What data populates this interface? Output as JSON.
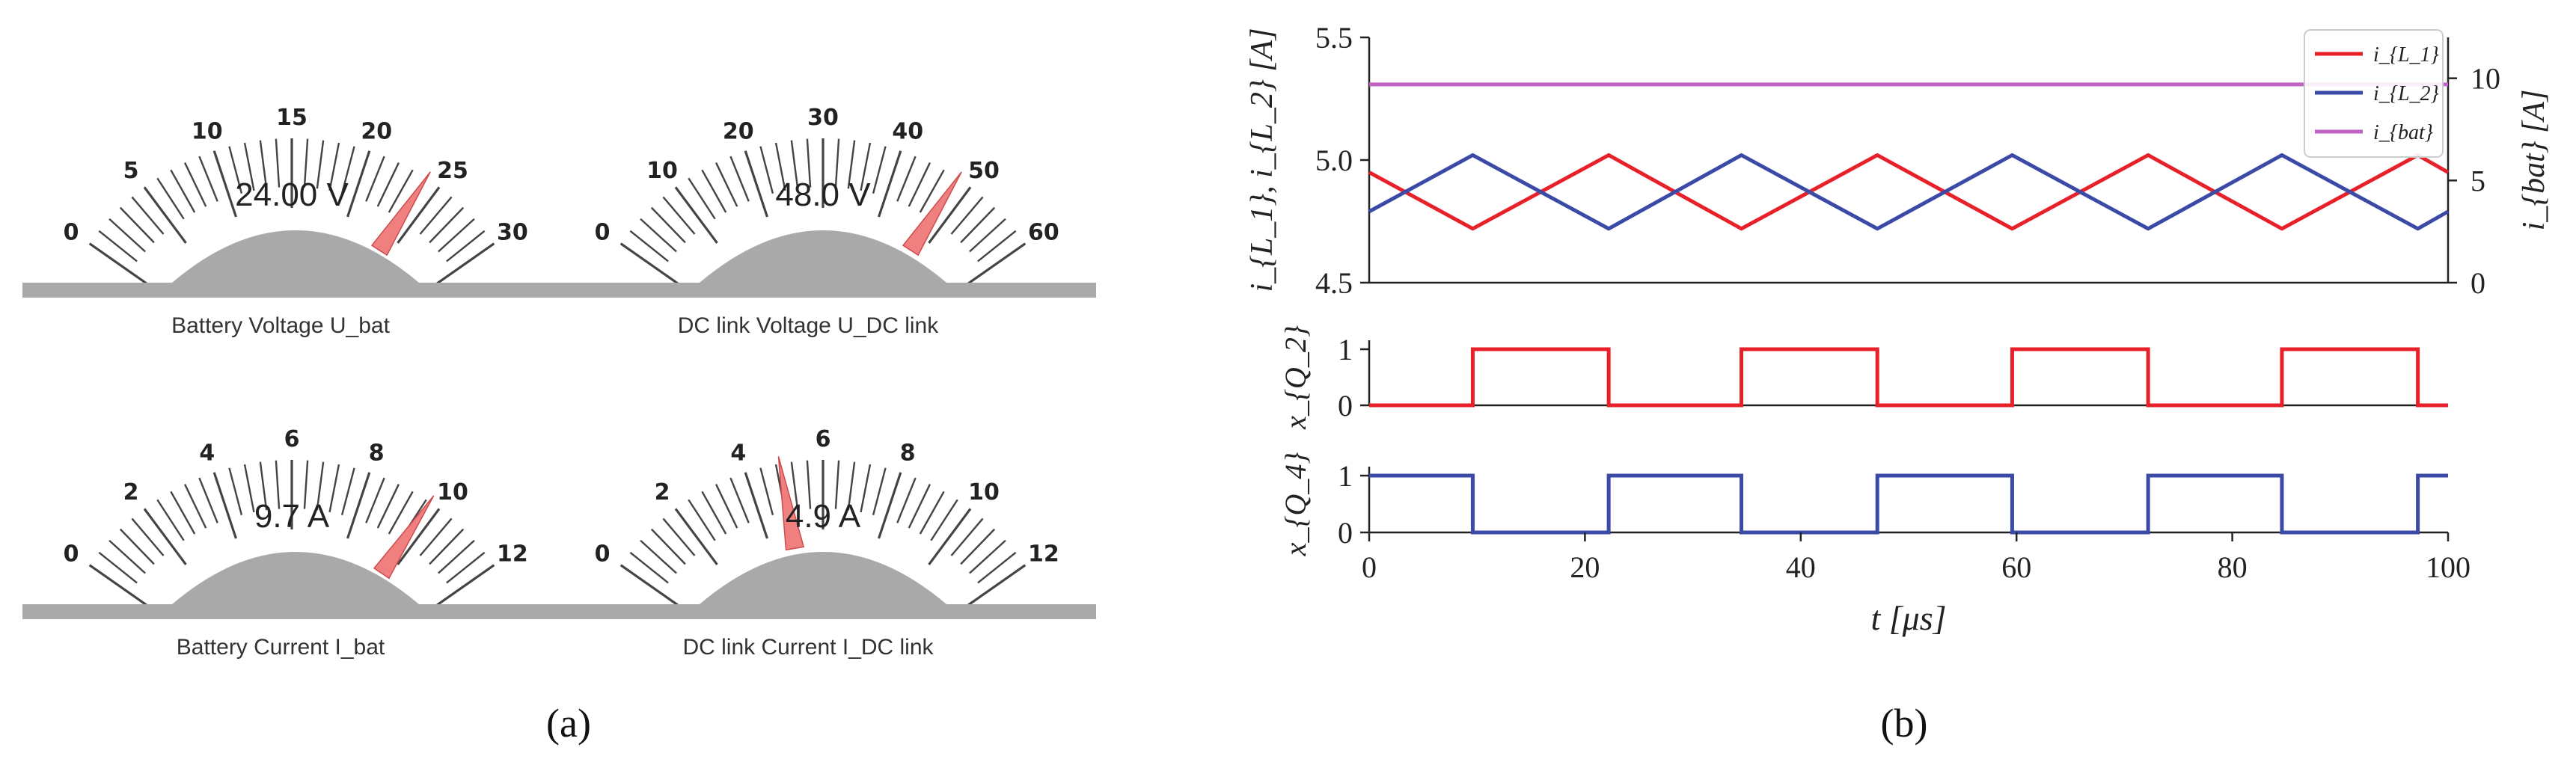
{
  "panel_a": {
    "label": "(a)",
    "gauges": [
      {
        "name": "battery-voltage",
        "ticks": [
          0,
          5,
          10,
          15,
          20,
          25,
          30
        ],
        "tick_labels": [
          "0",
          "5",
          "10",
          "15",
          "20",
          "25",
          "30"
        ],
        "min": 0,
        "max": 30,
        "value": 24.0,
        "readout": "24.00 V",
        "caption": "Battery Voltage U_bat"
      },
      {
        "name": "dc-link-voltage",
        "ticks": [
          0,
          10,
          20,
          30,
          40,
          50,
          60
        ],
        "tick_labels": [
          "0",
          "10",
          "20",
          "30",
          "40",
          "50",
          "60"
        ],
        "min": 0,
        "max": 60,
        "value": 48.0,
        "readout": "48.0 V",
        "caption": "DC link Voltage U_DC link"
      },
      {
        "name": "battery-current",
        "ticks": [
          0,
          2,
          4,
          6,
          8,
          10,
          12
        ],
        "tick_labels": [
          "0",
          "2",
          "4",
          "6",
          "8",
          "10",
          "12"
        ],
        "min": 0,
        "max": 12,
        "value": 9.7,
        "readout": "9.7 A",
        "caption": "Battery Current I_bat"
      },
      {
        "name": "dc-link-current",
        "ticks": [
          0,
          2,
          4,
          6,
          8,
          10,
          12
        ],
        "tick_labels": [
          "0",
          "2",
          "4",
          "6",
          "8",
          "10",
          "12"
        ],
        "min": 0,
        "max": 12,
        "value": 4.9,
        "readout": "4.9 A",
        "caption": "DC link Current I_DC link"
      }
    ],
    "colors": {
      "needle": "#f08080",
      "needle_edge": "#cc4b4b",
      "dome": "#a9a9a9",
      "base": "#a9a9a9",
      "tick": "#444444"
    }
  },
  "panel_b": {
    "label": "(b)",
    "chart_data": [
      {
        "type": "line",
        "xlim": [
          0,
          100
        ],
        "ylim": [
          4.5,
          5.5
        ],
        "y2lim": [
          0,
          12
        ],
        "yticks": [
          "4.5",
          "5.0",
          "5.5"
        ],
        "y2ticks": [
          "0",
          "5",
          "10"
        ],
        "ylabel": "i_{L_1}, i_{L_2} [A]",
        "y2label": "i_{bat} [A]",
        "legend": [
          "i_{L_1}",
          "i_{L_2}",
          "i_{bat}"
        ],
        "legend_position": "top-right",
        "series": [
          {
            "name": "i_{L_1}",
            "color": "#e8202a",
            "axis": "left",
            "x": [
              0,
              9.6,
              22.2,
              34.5,
              47.1,
              59.6,
              72.2,
              84.6,
              97.2,
              100
            ],
            "y": [
              4.95,
              4.72,
              5.02,
              4.72,
              5.02,
              4.72,
              5.02,
              4.72,
              5.02,
              4.95
            ]
          },
          {
            "name": "i_{L_2}",
            "color": "#3a4aa6",
            "axis": "left",
            "x": [
              0,
              9.6,
              22.2,
              34.5,
              47.1,
              59.6,
              72.2,
              84.6,
              97.2,
              100
            ],
            "y": [
              4.79,
              5.02,
              4.72,
              5.02,
              4.72,
              5.02,
              4.72,
              5.02,
              4.72,
              4.79
            ]
          },
          {
            "name": "i_{bat}",
            "color": "#c162c5",
            "axis": "right",
            "x": [
              0,
              100
            ],
            "y": [
              9.7,
              9.7
            ]
          }
        ]
      },
      {
        "type": "line",
        "xlim": [
          0,
          100
        ],
        "ylim": [
          0,
          1
        ],
        "yticks": [
          "0",
          "1"
        ],
        "ylabel": "x_{Q_2}",
        "series": [
          {
            "name": "x_{Q_2}",
            "color": "#e8202a",
            "x": [
              0,
              9.6,
              9.6,
              22.2,
              22.2,
              34.5,
              34.5,
              47.1,
              47.1,
              59.6,
              59.6,
              72.2,
              72.2,
              84.6,
              84.6,
              97.2,
              97.2,
              100
            ],
            "y": [
              0,
              0,
              1,
              1,
              0,
              0,
              1,
              1,
              0,
              0,
              1,
              1,
              0,
              0,
              1,
              1,
              0,
              0
            ]
          }
        ]
      },
      {
        "type": "line",
        "xlim": [
          0,
          100
        ],
        "ylim": [
          0,
          1
        ],
        "yticks": [
          "0",
          "1"
        ],
        "ylabel": "x_{Q_4}",
        "xticks": [
          "0",
          "20",
          "40",
          "60",
          "80",
          "100"
        ],
        "xlabel": "t [μs]",
        "series": [
          {
            "name": "x_{Q_4}",
            "color": "#3a4aa6",
            "x": [
              0,
              9.6,
              9.6,
              22.2,
              22.2,
              34.5,
              34.5,
              47.1,
              47.1,
              59.6,
              59.6,
              72.2,
              72.2,
              84.6,
              84.6,
              97.2,
              97.2,
              100
            ],
            "y": [
              1,
              1,
              0,
              0,
              1,
              1,
              0,
              0,
              1,
              1,
              0,
              0,
              1,
              1,
              0,
              0,
              1,
              1
            ]
          }
        ]
      }
    ]
  }
}
